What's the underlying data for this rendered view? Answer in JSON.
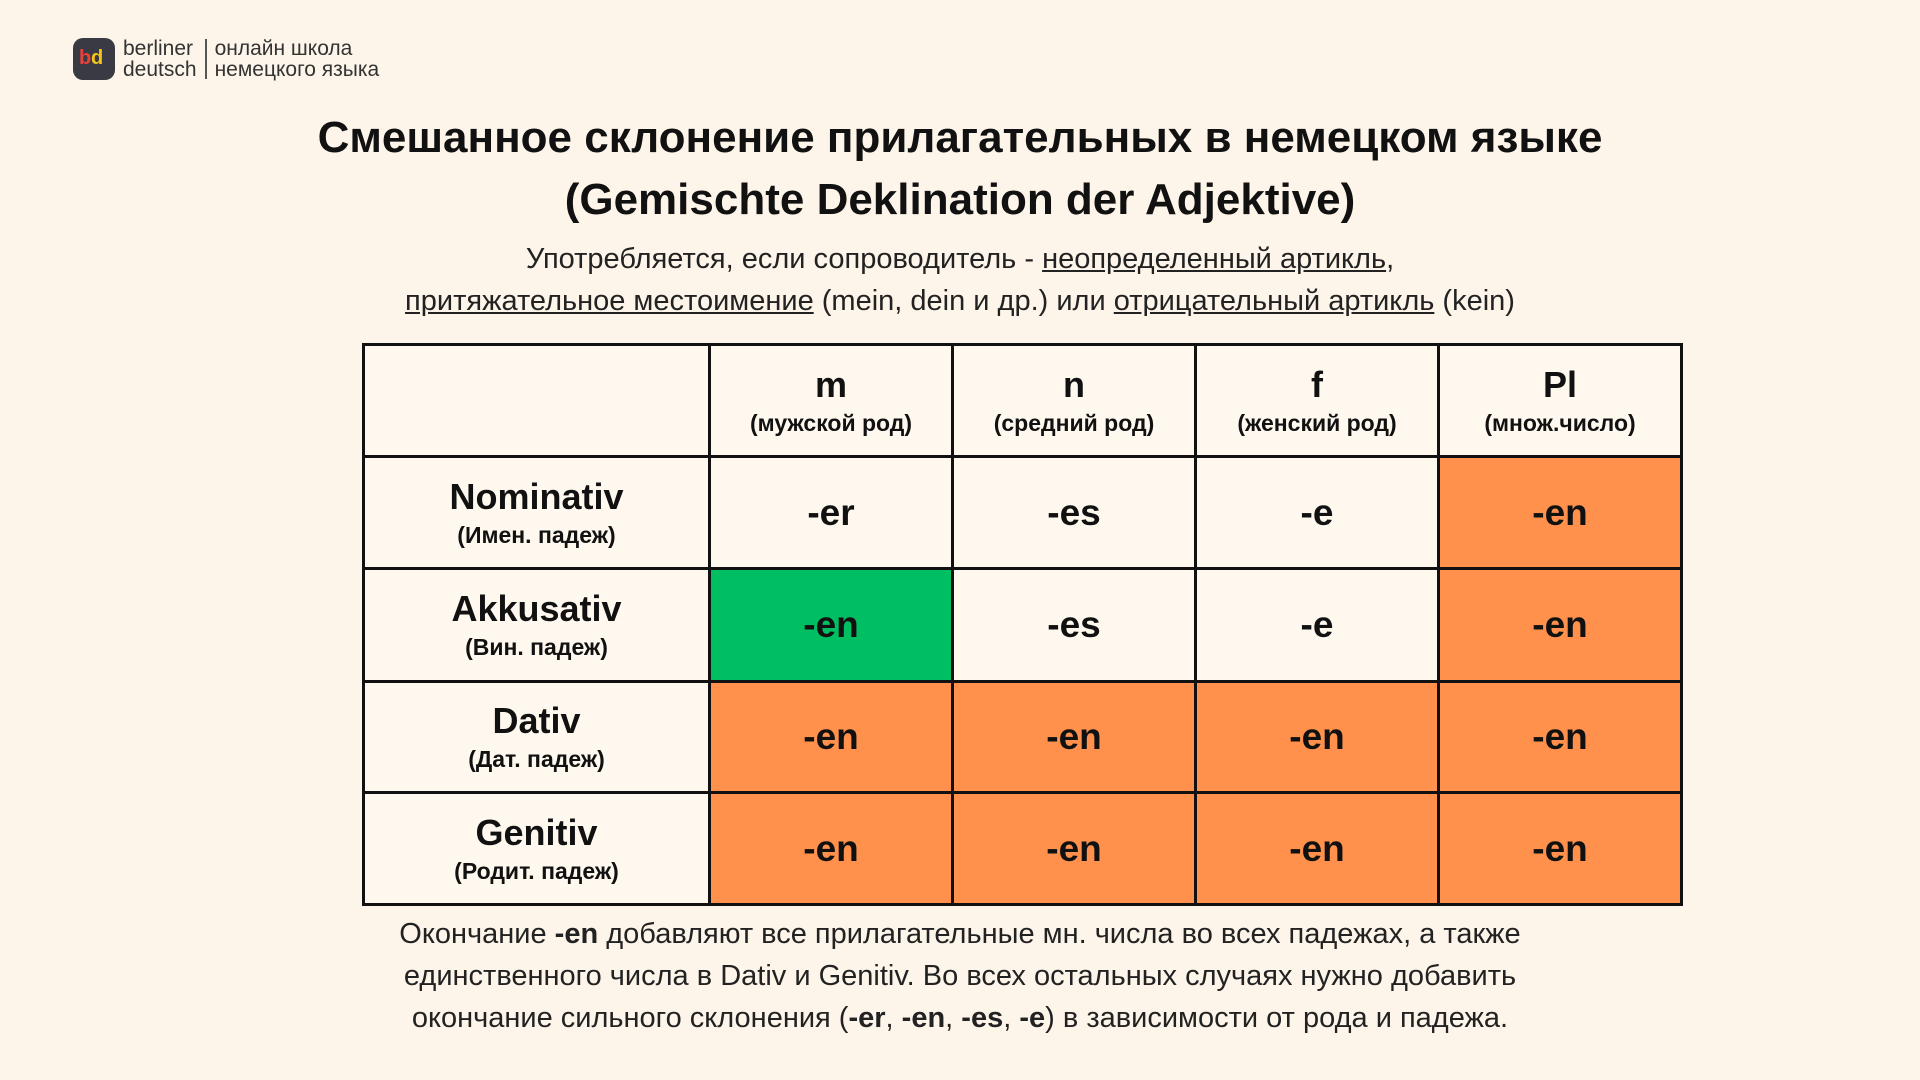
{
  "logo": {
    "brand": [
      "berliner",
      "deutsch"
    ],
    "tagline": [
      "онлайн школа",
      "немецкого языка"
    ]
  },
  "title": [
    "Смешанное склонение прилагательных в немецком языке",
    "(Gemischte Deklination der Adjektive)"
  ],
  "subtitle": [
    [
      {
        "text": "Употребляется, если сопроводитель - "
      },
      {
        "text": "неопределенный артикль",
        "underline": true
      },
      {
        "text": ","
      }
    ],
    [
      {
        "text": "притяжательное местоимение",
        "underline": true
      },
      {
        "text": " (mein, dein и др.) или "
      },
      {
        "text": "отрицательный артикль",
        "underline": true
      },
      {
        "text": " (kein)"
      }
    ]
  ],
  "table": {
    "header": [
      {
        "label": "m",
        "note": "(мужской род)"
      },
      {
        "label": "n",
        "note": "(средний род)"
      },
      {
        "label": "f",
        "note": "(женский род)"
      },
      {
        "label": "Pl",
        "note": "(множ.число)"
      }
    ],
    "rows": [
      {
        "case": "Nominativ",
        "note": "(Имен. падеж)",
        "cells": [
          {
            "text": "-er",
            "color": "#fff8ef"
          },
          {
            "text": "-es",
            "color": "#fff8ef"
          },
          {
            "text": "-e",
            "color": "#fff8ef"
          },
          {
            "text": "-en",
            "color": "#ff914d"
          }
        ]
      },
      {
        "case": "Akkusativ",
        "note": "(Вин. падеж)",
        "cells": [
          {
            "text": "-en",
            "color": "#00bf63"
          },
          {
            "text": "-es",
            "color": "#fff8ef"
          },
          {
            "text": "-e",
            "color": "#fff8ef"
          },
          {
            "text": "-en",
            "color": "#ff914d"
          }
        ]
      },
      {
        "case": "Dativ",
        "note": "(Дат. падеж)",
        "cells": [
          {
            "text": "-en",
            "color": "#ff914d"
          },
          {
            "text": "-en",
            "color": "#ff914d"
          },
          {
            "text": "-en",
            "color": "#ff914d"
          },
          {
            "text": "-en",
            "color": "#ff914d"
          }
        ]
      },
      {
        "case": "Genitiv",
        "note": "(Родит. падеж)",
        "cells": [
          {
            "text": "-en",
            "color": "#ff914d"
          },
          {
            "text": "-en",
            "color": "#ff914d"
          },
          {
            "text": "-en",
            "color": "#ff914d"
          },
          {
            "text": "-en",
            "color": "#ff914d"
          }
        ]
      }
    ]
  },
  "footer": [
    [
      {
        "text": "Окончание "
      },
      {
        "text": "-en",
        "bold": true
      },
      {
        "text": " добавляют все прилагательные мн. числа во всех падежах, а также"
      }
    ],
    [
      {
        "text": "единственного числа в Dativ и Genitiv. Во всех остальных случаях нужно добавить"
      }
    ],
    [
      {
        "text": "окончание сильного склонения ("
      },
      {
        "text": "-er",
        "bold": true
      },
      {
        "text": ", "
      },
      {
        "text": "-en",
        "bold": true
      },
      {
        "text": ", "
      },
      {
        "text": "-es",
        "bold": true
      },
      {
        "text": ", "
      },
      {
        "text": "-e",
        "bold": true
      },
      {
        "text": ") в зависимости от рода и падежа."
      }
    ]
  ]
}
